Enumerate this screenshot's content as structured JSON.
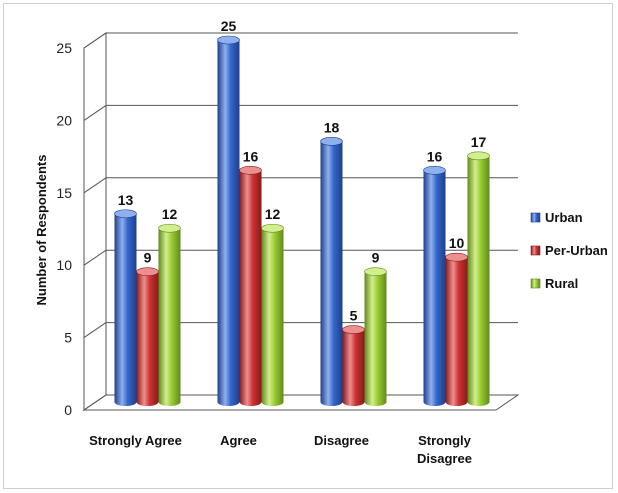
{
  "chart_data": {
    "type": "bar",
    "title": "",
    "xlabel": "",
    "ylabel": "Number of Respondents",
    "ylim": [
      0,
      25
    ],
    "yticks": [
      "0",
      "5",
      "10",
      "15",
      "20",
      "25"
    ],
    "categories": [
      [
        "Strongly Agree"
      ],
      [
        "Agree"
      ],
      [
        "Disagree"
      ],
      [
        "Strongly",
        "Disagree"
      ]
    ],
    "series": [
      {
        "name": "Urban",
        "values": [
          13,
          25,
          18,
          16
        ],
        "color": "#3366cc",
        "dark": "#1f3f8a",
        "light": "#8fb0ee"
      },
      {
        "name": "Per-Urban",
        "values": [
          9,
          16,
          5,
          10
        ],
        "color": "#cc3333",
        "dark": "#861a1a",
        "light": "#ee8f8f"
      },
      {
        "name": "Rural",
        "values": [
          12,
          12,
          9,
          17
        ],
        "color": "#99cc33",
        "dark": "#5f8a1a",
        "light": "#d2ee8f"
      }
    ],
    "grid": true,
    "legend_position": "right"
  }
}
